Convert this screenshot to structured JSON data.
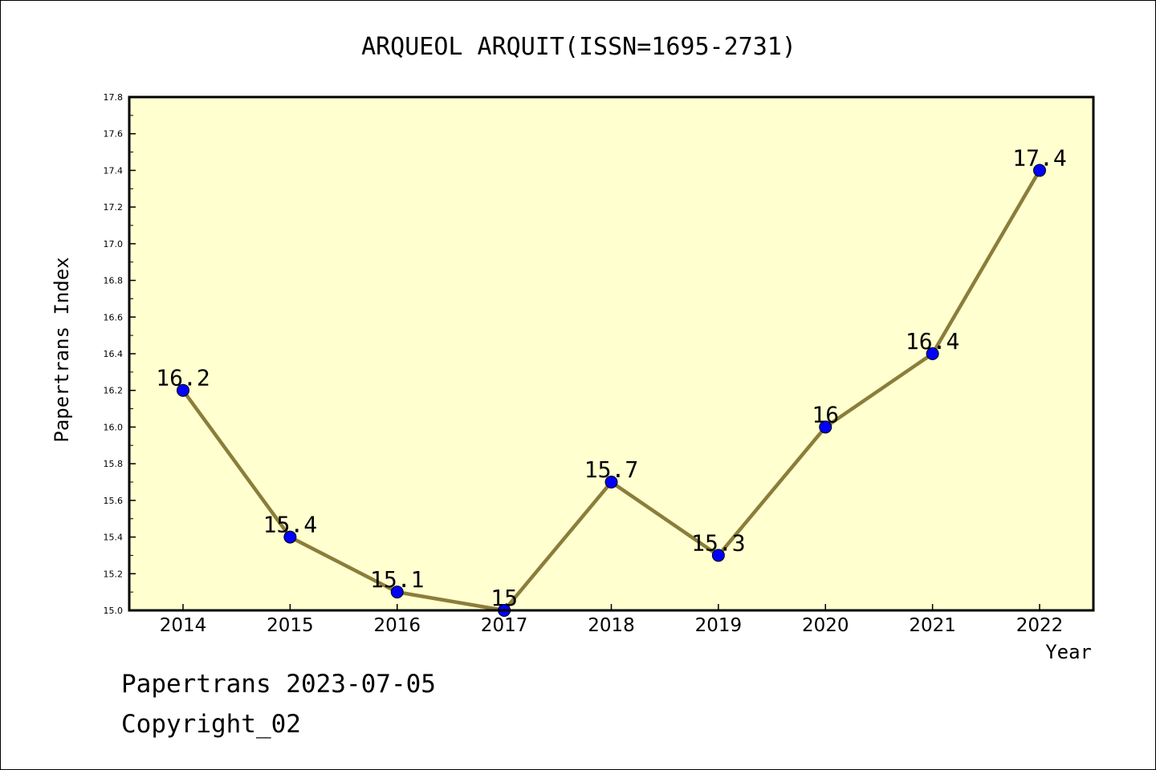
{
  "colors": {
    "plot_background": "#ffffd0",
    "line": "#8b7d3a",
    "marker": "#0000ff",
    "axis": "#000000"
  },
  "footer": {
    "line1": "Papertrans 2023-07-05",
    "line2": "Copyright_02"
  },
  "chart_data": {
    "type": "line",
    "title": "ARQUEOL ARQUIT(ISSN=1695-2731)",
    "xlabel": "Year",
    "ylabel": "Papertrans Index",
    "x": [
      "2014",
      "2015",
      "2016",
      "2017",
      "2018",
      "2019",
      "2020",
      "2021",
      "2022"
    ],
    "series": [
      {
        "values": [
          16.2,
          15.4,
          15.1,
          15.0,
          15.7,
          15.3,
          16.0,
          16.4,
          17.4
        ],
        "data_labels": [
          "16.2",
          "15.4",
          "15.1",
          "15",
          "15.7",
          "15.3",
          "16",
          "16.4",
          "17.4"
        ]
      }
    ],
    "ylim": [
      15.0,
      17.8
    ],
    "yticks": [
      "15.0",
      "15.2",
      "15.4",
      "15.6",
      "15.8",
      "16.0",
      "16.2",
      "16.4",
      "16.6",
      "16.8",
      "17.0",
      "17.2",
      "17.4",
      "17.6",
      "17.8"
    ],
    "grid": false,
    "legend": "none"
  }
}
